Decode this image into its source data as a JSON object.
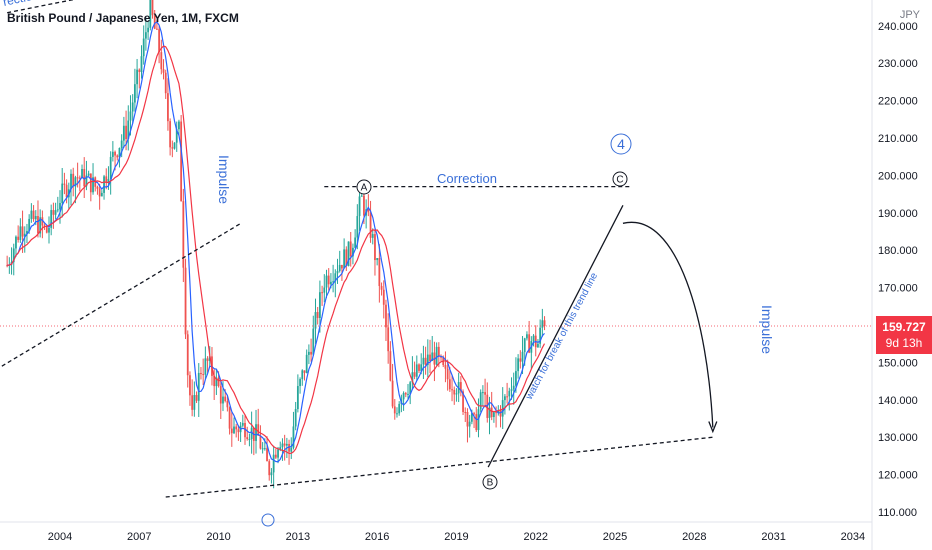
{
  "header": {
    "symbol_label": "British Pound / Japanese Yen, 1M, FXCM"
  },
  "currency": "JPY",
  "price_badge": {
    "price": "159.727",
    "countdown": "9d 13h"
  },
  "colors": {
    "up": "#26a69a",
    "down": "#ef5350",
    "ma_fast": "#2962ff",
    "ma_slow": "#f23645",
    "annotation": "#3a6fd8",
    "price_line": "#f23645"
  },
  "annotations": {
    "impulse_left": "Impulse",
    "impulse_right": "Impulse",
    "correction": "Correction",
    "wave_4": "4",
    "wave_a": "A",
    "wave_b": "B",
    "wave_c": "C",
    "trend_note": "watch for break of this trend line",
    "top_left_fragment": "rection"
  },
  "chart_data": {
    "type": "candlestick",
    "title": "British Pound / Japanese Yen, 1M, FXCM",
    "x_ticks": [
      "2004",
      "2007",
      "2010",
      "2013",
      "2016",
      "2019",
      "2022",
      "2025",
      "2028",
      "2031",
      "2034"
    ],
    "y_ticks": [
      "110.000",
      "120.000",
      "130.000",
      "140.000",
      "150.000",
      "160.000",
      "170.000",
      "180.000",
      "190.000",
      "200.000",
      "210.000",
      "220.000",
      "230.000",
      "240.000"
    ],
    "ylim": [
      108,
      244
    ],
    "xlim": [
      2001.8,
      2035
    ],
    "last_price": 159.727,
    "price_path_yearly": [
      [
        2002.0,
        176
      ],
      [
        2002.5,
        186
      ],
      [
        2003.0,
        188
      ],
      [
        2003.5,
        185
      ],
      [
        2004.0,
        194
      ],
      [
        2004.5,
        200
      ],
      [
        2005.0,
        199
      ],
      [
        2005.5,
        196
      ],
      [
        2006.0,
        205
      ],
      [
        2006.5,
        212
      ],
      [
        2007.0,
        228
      ],
      [
        2007.4,
        245
      ],
      [
        2007.8,
        232
      ],
      [
        2008.2,
        208
      ],
      [
        2008.5,
        212
      ],
      [
        2008.8,
        150
      ],
      [
        2009.0,
        135
      ],
      [
        2009.3,
        148
      ],
      [
        2009.6,
        150
      ],
      [
        2010.0,
        143
      ],
      [
        2010.5,
        132
      ],
      [
        2011.0,
        133
      ],
      [
        2011.5,
        130
      ],
      [
        2011.9,
        121
      ],
      [
        2012.3,
        130
      ],
      [
        2012.7,
        126
      ],
      [
        2013.0,
        142
      ],
      [
        2013.5,
        155
      ],
      [
        2014.0,
        172
      ],
      [
        2014.5,
        176
      ],
      [
        2015.0,
        180
      ],
      [
        2015.4,
        194
      ],
      [
        2015.8,
        184
      ],
      [
        2016.3,
        162
      ],
      [
        2016.6,
        135
      ],
      [
        2016.9,
        142
      ],
      [
        2017.3,
        145
      ],
      [
        2017.8,
        150
      ],
      [
        2018.2,
        152
      ],
      [
        2018.6,
        146
      ],
      [
        2019.0,
        144
      ],
      [
        2019.4,
        136
      ],
      [
        2019.7,
        133
      ],
      [
        2020.0,
        142
      ],
      [
        2020.3,
        134
      ],
      [
        2020.7,
        138
      ],
      [
        2021.0,
        142
      ],
      [
        2021.4,
        152
      ],
      [
        2021.8,
        156
      ],
      [
        2022.1,
        155
      ],
      [
        2022.3,
        163
      ],
      [
        2022.4,
        159.7
      ]
    ],
    "projection": {
      "wave_c_target": [
        2025.3,
        192
      ],
      "impulse_target": [
        2028.7,
        131
      ]
    },
    "trendlines": [
      {
        "from": [
          2001.8,
          149
        ],
        "to": [
          2010.8,
          187
        ],
        "style": "dashed"
      },
      {
        "from": [
          2002.0,
          243.5
        ],
        "to": [
          2004.5,
          247
        ],
        "style": "dashed"
      },
      {
        "from": [
          2008.0,
          114
        ],
        "to": [
          2028.7,
          130
        ],
        "style": "dashed"
      },
      {
        "from": [
          2014.0,
          197
        ],
        "to": [
          2025.6,
          197
        ],
        "style": "dashed"
      },
      {
        "from": [
          2020.2,
          122
        ],
        "to": [
          2025.3,
          192
        ],
        "style": "solid"
      }
    ]
  }
}
